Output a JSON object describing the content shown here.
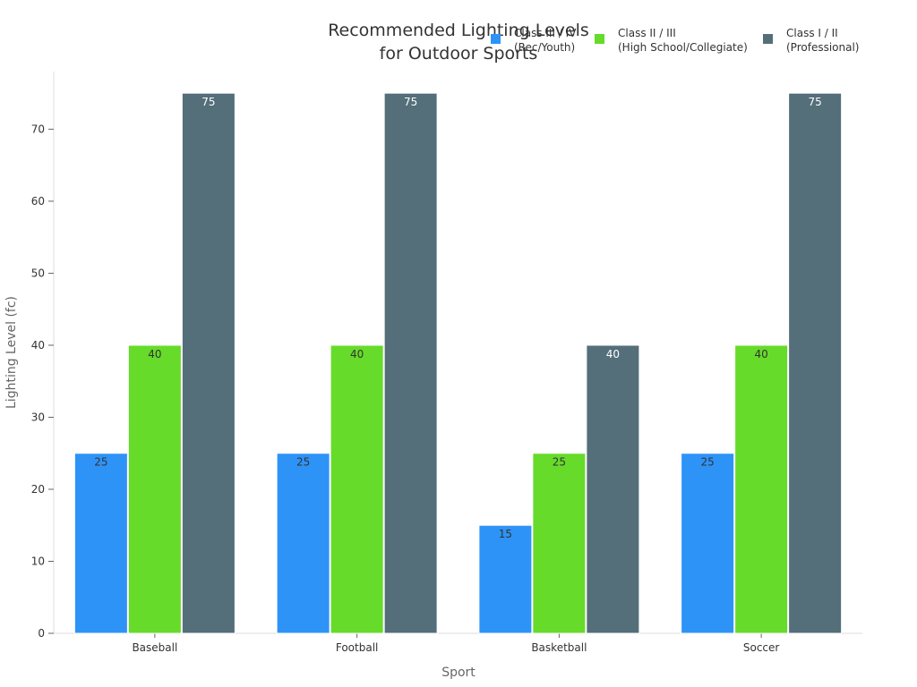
{
  "chart_data": {
    "type": "bar",
    "title_lines": [
      "Recommended Lighting Levels",
      "for Outdoor Sports"
    ],
    "xlabel": "Sport",
    "ylabel": "Lighting Level (fc)",
    "categories": [
      "Baseball",
      "Football",
      "Basketball",
      "Soccer"
    ],
    "ylim": [
      0,
      78
    ],
    "yticks": [
      0,
      10,
      20,
      30,
      40,
      50,
      60,
      70
    ],
    "grid": false,
    "legend_position": "top-right",
    "series": [
      {
        "name": "Class III / IV\n(Rec/Youth)",
        "color": "#2e93f7",
        "label_color": "#333333",
        "values": [
          25,
          25,
          15,
          25
        ]
      },
      {
        "name": "Class II / III\n(High School/Collegiate)",
        "color": "#66db2a",
        "label_color": "#333333",
        "values": [
          40,
          40,
          25,
          40
        ]
      },
      {
        "name": "Class I / II\n(Professional)",
        "color": "#546e7a",
        "label_color": "#ffffff",
        "values": [
          75,
          75,
          40,
          75
        ]
      }
    ]
  }
}
